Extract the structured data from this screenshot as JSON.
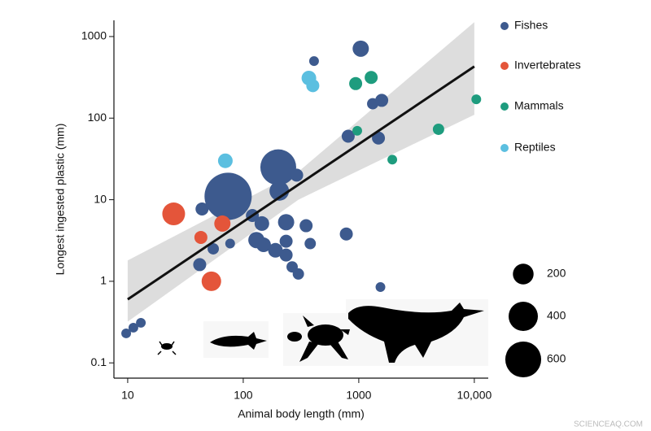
{
  "chart_data": {
    "type": "scatter",
    "x_label": "Animal body length (mm)",
    "y_label": "Longest ingested plastic (mm)",
    "log_x": true,
    "log_y": true,
    "xlim": [
      7.6,
      13200
    ],
    "ylim": [
      0.065,
      1580
    ],
    "xticks": [
      10,
      100,
      1000,
      {
        "value": 10000,
        "label": "10,000"
      }
    ],
    "yticks": [
      0.1,
      1,
      10,
      100,
      1000
    ],
    "series": [
      {
        "name": "Fishes",
        "color": "#3d5a8e",
        "x": [
          9.7,
          11.2,
          13,
          44,
          42,
          55,
          77,
          57,
          74,
          201,
          205,
          120,
          130,
          145,
          150,
          190,
          235,
          235,
          235,
          265,
          300,
          350,
          380,
          290,
          410,
          780,
          810,
          1040,
          1320,
          1580,
          1480,
          1540
        ],
        "values": [
          0.23,
          0.27,
          0.31,
          7.7,
          1.6,
          2.5,
          2.9,
          11.4,
          11,
          25,
          12.8,
          6.4,
          3.2,
          5.1,
          2.8,
          2.4,
          2.1,
          5.3,
          3.1,
          1.5,
          1.23,
          4.8,
          2.9,
          20,
          500,
          3.8,
          60,
          710,
          150,
          165,
          57,
          0.85
        ],
        "sizes": [
          44,
          44,
          44,
          79,
          79,
          60,
          44,
          79,
          1040,
          598,
          178,
          79,
          123,
          100,
          100,
          100,
          79,
          123,
          79,
          60,
          60,
          79,
          60,
          79,
          44,
          79,
          79,
          123,
          60,
          79,
          79,
          44
        ]
      },
      {
        "name": "Invertebrates",
        "color": "#e4553a",
        "x": [
          25,
          43,
          66,
          53
        ],
        "values": [
          6.7,
          3.45,
          5.1,
          1.0
        ],
        "sizes": [
          242,
          79,
          123,
          178
        ]
      },
      {
        "name": "Mammals",
        "color": "#1e9c7e",
        "x": [
          940,
          1280,
          970,
          4900,
          1950,
          10400
        ],
        "values": [
          265,
          315,
          70,
          73,
          31,
          170
        ],
        "sizes": [
          79,
          79,
          44,
          60,
          44,
          44
        ]
      },
      {
        "name": "Reptiles",
        "color": "#5bbfe0",
        "x": [
          70,
          370,
          400
        ],
        "values": [
          30,
          310,
          250
        ],
        "sizes": [
          100,
          100,
          79
        ]
      }
    ],
    "fit": {
      "x": [
        10,
        10000
      ],
      "y": [
        0.6,
        430
      ],
      "color": "#111"
    },
    "band": {
      "x": [
        10,
        300,
        10000
      ],
      "lower": [
        0.32,
        10,
        110
      ],
      "upper": [
        1.8,
        22,
        1500
      ],
      "color": "#d4d4d4"
    },
    "size_legend": [
      200,
      400,
      600
    ],
    "watermark": "SCIENCEAQ.COM"
  }
}
